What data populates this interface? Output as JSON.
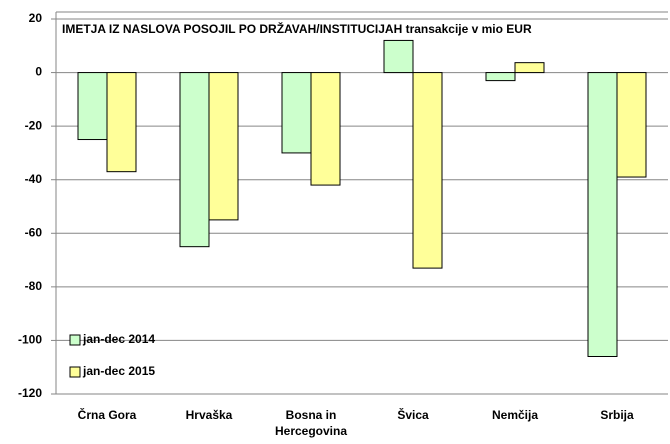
{
  "chart_data": {
    "type": "bar",
    "title": "IMETJA IZ NASLOVA POSOJIL PO DRŽAVAH/INSTITUCIJAH transakcije v mio EUR",
    "categories": [
      "Črna Gora",
      "Hrvaška",
      "Bosna in Hercegovina",
      "Švica",
      "Nemčija",
      "Srbija"
    ],
    "series": [
      {
        "name": "jan-dec 2014",
        "color": "#ccffcc",
        "values": [
          -25,
          -65,
          -30,
          12,
          -3,
          -106
        ]
      },
      {
        "name": "jan-dec 2015",
        "color": "#ffff99",
        "values": [
          -37,
          -55,
          -42,
          -73,
          3.7,
          -39
        ]
      }
    ],
    "ylim": [
      -120,
      20
    ],
    "yticks": [
      -120,
      -100,
      -80,
      -60,
      -40,
      -20,
      0,
      20
    ],
    "grid": true
  }
}
